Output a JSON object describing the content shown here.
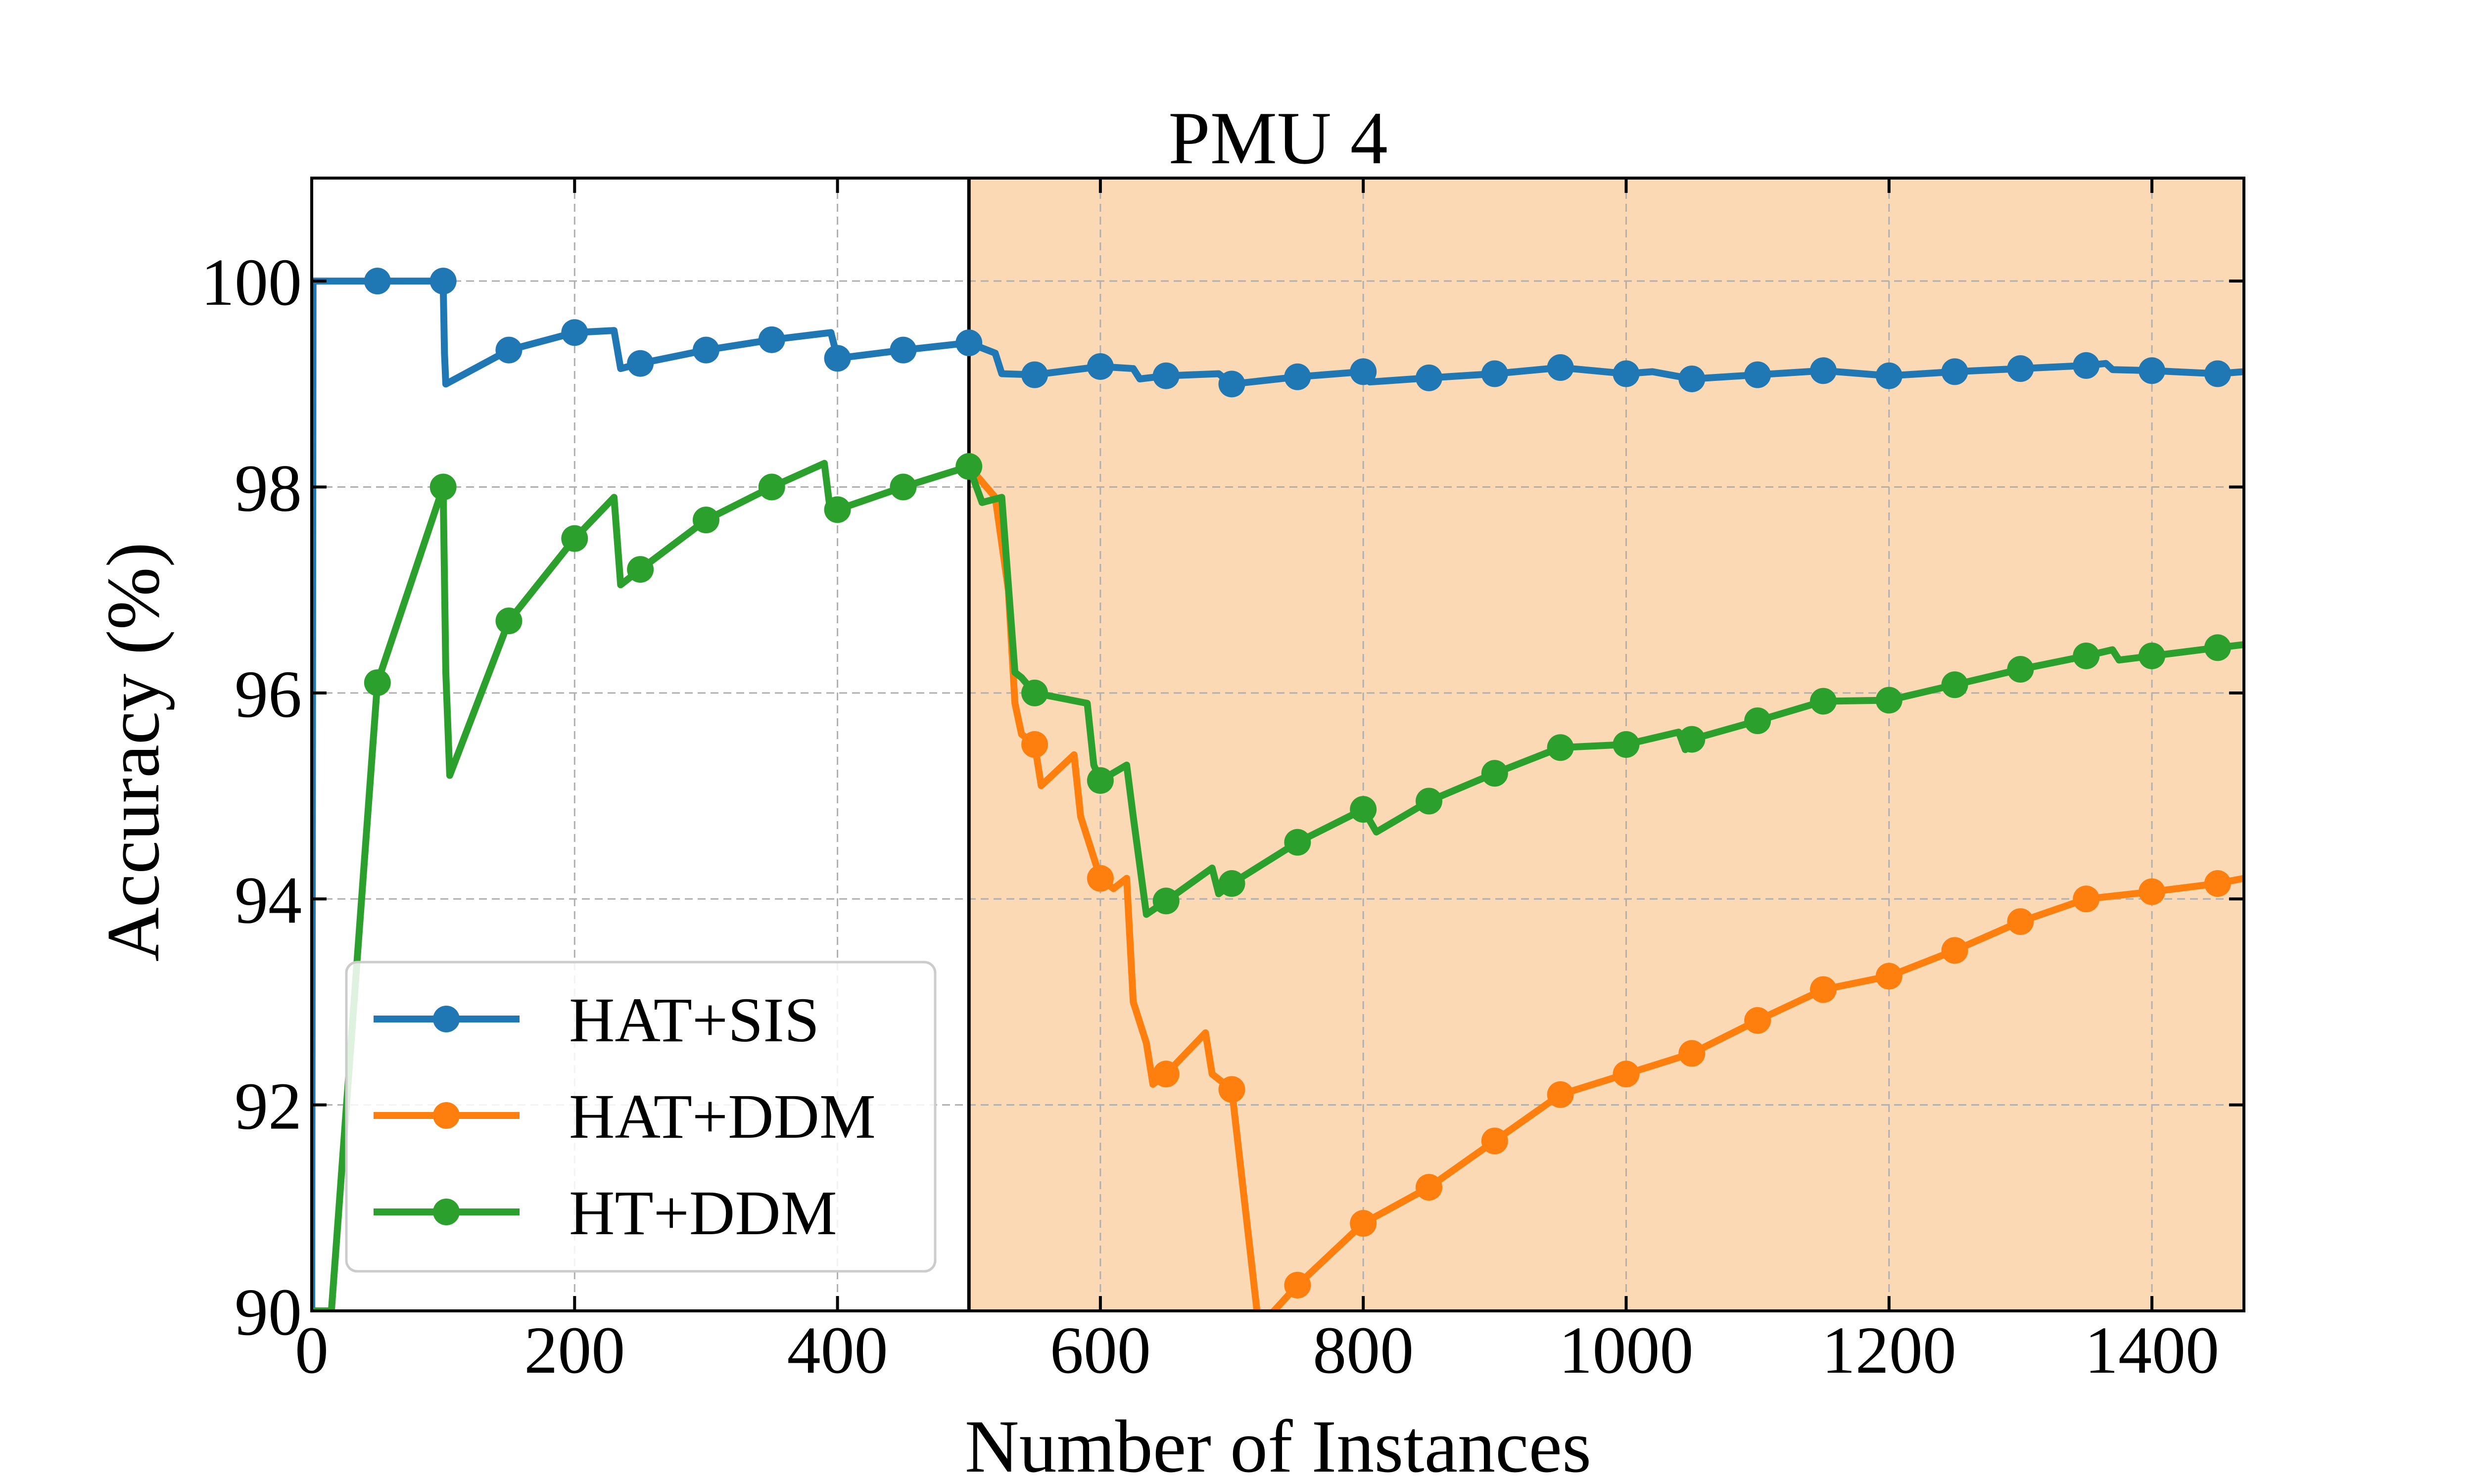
{
  "chart_data": {
    "type": "line",
    "title": "PMU 4",
    "xlabel": "Number of Instances",
    "ylabel": "Accuracy (%)",
    "xlim": [
      0,
      1470
    ],
    "ylim": [
      90,
      101
    ],
    "x_ticks": [
      0,
      200,
      400,
      600,
      800,
      1000,
      1200,
      1400
    ],
    "y_ticks": [
      90,
      92,
      94,
      96,
      98,
      100
    ],
    "x_tick_labels": [
      "0",
      "200",
      "400",
      "600",
      "800",
      "1000",
      "1200",
      "1400"
    ],
    "y_tick_labels": [
      "90",
      "92",
      "94",
      "96",
      "98",
      "100"
    ],
    "grid": true,
    "legend_position": "lower-left",
    "shaded_region": {
      "x_start": 500,
      "x_end": 1470,
      "color": "#fbd9b4"
    },
    "vertical_line_x": 500,
    "series": [
      {
        "name": "HAT+SIS",
        "color": "#1f77b4",
        "x": [
          0,
          1,
          50,
          100,
          101,
          102,
          150,
          200,
          230,
          235,
          250,
          300,
          350,
          395,
          400,
          450,
          500,
          520,
          525,
          550,
          600,
          625,
          630,
          650,
          690,
          700,
          750,
          800,
          805,
          850,
          900,
          950,
          1000,
          1020,
          1050,
          1100,
          1150,
          1200,
          1250,
          1300,
          1350,
          1365,
          1370,
          1400,
          1450,
          1470
        ],
        "y": [
          90,
          100,
          100,
          100,
          99.3,
          99.0,
          99.33,
          99.5,
          99.52,
          99.15,
          99.2,
          99.33,
          99.43,
          99.5,
          99.25,
          99.33,
          99.4,
          99.3,
          99.1,
          99.09,
          99.17,
          99.15,
          99.05,
          99.08,
          99.1,
          99.0,
          99.07,
          99.12,
          99.02,
          99.06,
          99.1,
          99.16,
          99.1,
          99.12,
          99.05,
          99.09,
          99.13,
          99.08,
          99.12,
          99.15,
          99.18,
          99.2,
          99.14,
          99.13,
          99.1,
          99.12
        ]
      },
      {
        "name": "HAT+DDM",
        "color": "#ff7f0e",
        "x": [
          500,
          520,
          530,
          535,
          540,
          550,
          555,
          580,
          585,
          600,
          610,
          620,
          625,
          635,
          640,
          650,
          680,
          685,
          700,
          720,
          725,
          750,
          800,
          850,
          900,
          950,
          1000,
          1050,
          1100,
          1150,
          1200,
          1250,
          1300,
          1350,
          1400,
          1450,
          1470
        ],
        "y": [
          98.2,
          97.9,
          97.0,
          95.9,
          95.6,
          95.5,
          95.1,
          95.4,
          94.8,
          94.2,
          94.1,
          94.2,
          93.0,
          92.6,
          92.2,
          92.3,
          92.7,
          92.3,
          92.15,
          89.9,
          89.9,
          90.25,
          90.85,
          91.2,
          91.65,
          92.1,
          92.3,
          92.5,
          92.82,
          93.12,
          93.25,
          93.5,
          93.78,
          94.0,
          94.07,
          94.15,
          94.2
        ]
      },
      {
        "name": "HT+DDM",
        "color": "#2ca02c",
        "x": [
          0,
          15,
          50,
          100,
          102,
          105,
          150,
          200,
          230,
          235,
          250,
          300,
          350,
          390,
          395,
          400,
          450,
          500,
          510,
          525,
          535,
          540,
          550,
          590,
          595,
          600,
          620,
          625,
          635,
          650,
          685,
          690,
          700,
          750,
          800,
          810,
          850,
          900,
          950,
          1000,
          1040,
          1045,
          1050,
          1100,
          1150,
          1200,
          1250,
          1300,
          1350,
          1370,
          1375,
          1400,
          1450,
          1470
        ],
        "y": [
          90,
          90.0,
          96.1,
          98.0,
          96.2,
          95.2,
          96.7,
          97.5,
          97.9,
          97.05,
          97.2,
          97.68,
          98.0,
          98.23,
          97.72,
          97.78,
          98.0,
          98.2,
          97.85,
          97.9,
          96.2,
          96.15,
          96.0,
          95.9,
          95.3,
          95.15,
          95.3,
          94.8,
          93.85,
          93.98,
          94.3,
          94.05,
          94.15,
          94.55,
          94.87,
          94.65,
          94.95,
          95.22,
          95.47,
          95.5,
          95.62,
          95.45,
          95.55,
          95.73,
          95.92,
          95.93,
          96.08,
          96.23,
          96.36,
          96.42,
          96.32,
          96.36,
          96.44,
          96.47
        ]
      }
    ],
    "markers": [
      {
        "series": "HAT+SIS",
        "x": [
          50,
          100,
          150,
          200,
          250,
          300,
          350,
          400,
          450,
          500,
          550,
          600,
          650,
          700,
          750,
          800,
          850,
          900,
          950,
          1000,
          1050,
          1100,
          1150,
          1200,
          1250,
          1300,
          1350,
          1400,
          1450
        ],
        "y": [
          100,
          100,
          99.33,
          99.5,
          99.2,
          99.33,
          99.43,
          99.25,
          99.33,
          99.4,
          99.09,
          99.17,
          99.08,
          99.0,
          99.07,
          99.12,
          99.06,
          99.1,
          99.16,
          99.1,
          99.05,
          99.09,
          99.13,
          99.08,
          99.12,
          99.15,
          99.18,
          99.13,
          99.1
        ]
      },
      {
        "series": "HAT+DDM",
        "x": [
          550,
          600,
          650,
          700,
          750,
          800,
          850,
          900,
          950,
          1000,
          1050,
          1100,
          1150,
          1200,
          1250,
          1300,
          1350,
          1400,
          1450
        ],
        "y": [
          95.5,
          94.2,
          92.3,
          92.15,
          90.25,
          90.85,
          91.2,
          91.65,
          92.1,
          92.3,
          92.5,
          92.82,
          93.12,
          93.25,
          93.5,
          93.78,
          94.0,
          94.07,
          94.15
        ]
      },
      {
        "series": "HT+DDM",
        "x": [
          50,
          100,
          150,
          200,
          250,
          300,
          350,
          400,
          450,
          500,
          550,
          600,
          650,
          700,
          750,
          800,
          850,
          900,
          950,
          1000,
          1050,
          1100,
          1150,
          1200,
          1250,
          1300,
          1350,
          1400,
          1450
        ],
        "y": [
          96.1,
          98.0,
          96.7,
          97.5,
          97.2,
          97.68,
          98.0,
          97.78,
          98.0,
          98.2,
          96.0,
          95.15,
          93.98,
          94.15,
          94.55,
          94.87,
          94.95,
          95.22,
          95.47,
          95.5,
          95.55,
          95.73,
          95.92,
          95.93,
          96.08,
          96.23,
          96.36,
          96.36,
          96.44
        ]
      }
    ]
  }
}
